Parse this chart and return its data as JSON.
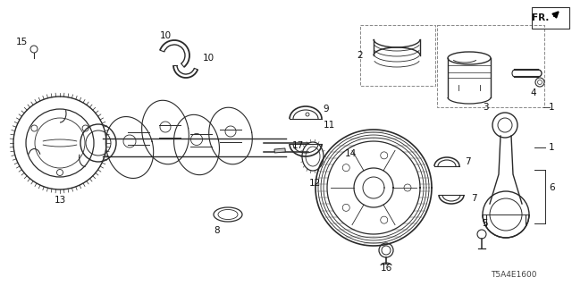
{
  "background_color": "#ffffff",
  "line_color": "#2a2a2a",
  "label_color": "#111111",
  "label_fontsize": 7.5,
  "diagram_code_text": "T5A4E1600"
}
